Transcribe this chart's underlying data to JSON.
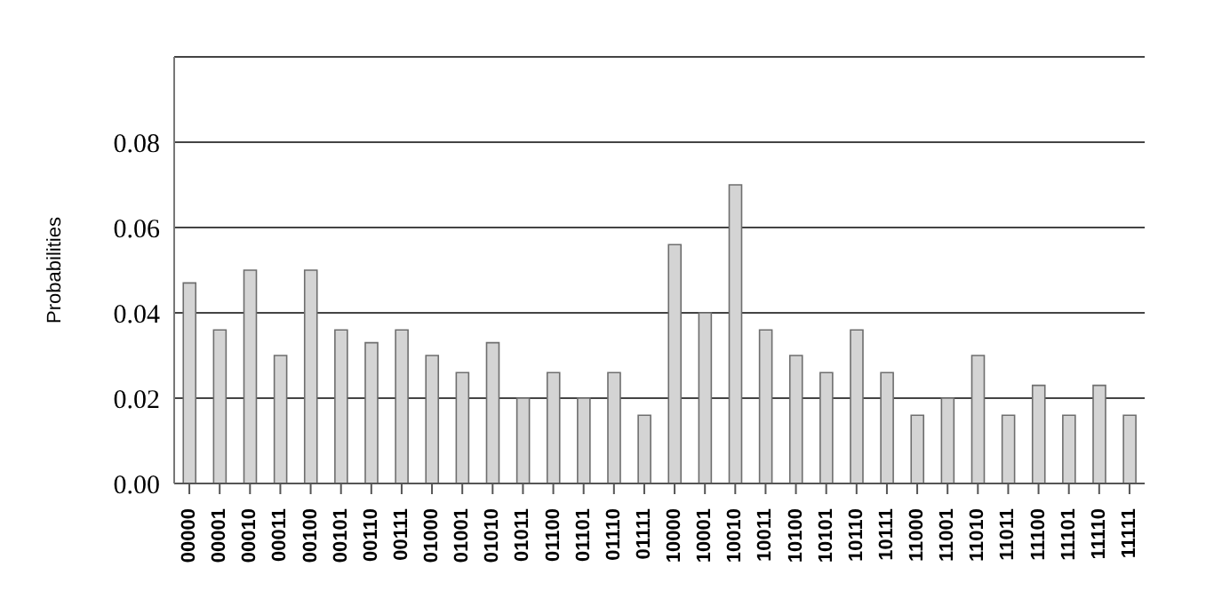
{
  "chart_data": {
    "type": "bar",
    "ylabel": "Probabilities",
    "categories": [
      "00000",
      "00001",
      "00010",
      "00011",
      "00100",
      "00101",
      "00110",
      "00111",
      "01000",
      "01001",
      "01010",
      "01011",
      "01100",
      "01101",
      "01110",
      "01111",
      "10000",
      "10001",
      "10010",
      "10011",
      "10100",
      "10101",
      "10110",
      "10111",
      "11000",
      "11001",
      "11010",
      "11011",
      "11100",
      "11101",
      "11110",
      "11111"
    ],
    "values": [
      0.047,
      0.036,
      0.05,
      0.03,
      0.05,
      0.036,
      0.033,
      0.036,
      0.03,
      0.026,
      0.033,
      0.02,
      0.026,
      0.02,
      0.026,
      0.016,
      0.056,
      0.04,
      0.07,
      0.036,
      0.03,
      0.026,
      0.036,
      0.026,
      0.016,
      0.02,
      0.03,
      0.016,
      0.023,
      0.016,
      0.023,
      0.016
    ],
    "color": "#d4d4d4",
    "ylim": [
      0,
      0.1
    ],
    "yticks": [
      {
        "value": 0,
        "label": "0.00"
      },
      {
        "value": 0.02,
        "label": "0.02"
      },
      {
        "value": 0.04,
        "label": "0.04"
      },
      {
        "value": 0.06,
        "label": "0.06"
      },
      {
        "value": 0.08,
        "label": "0.08"
      }
    ],
    "grid": "y"
  }
}
